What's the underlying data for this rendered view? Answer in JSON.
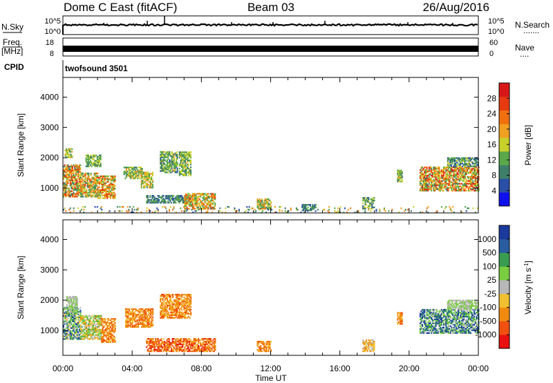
{
  "header": {
    "station": "Dome C East (fitACF)",
    "beam": "Beam 03",
    "date": "26/Aug/2016"
  },
  "left_labels": {
    "nsky": "N.Sky",
    "freq_line1": "Freq.",
    "freq_line2": "[MHz]",
    "cpid": "CPID"
  },
  "right_labels": {
    "nsearch": "N.Search",
    "nsearch_dots": ".......",
    "nave": "Nave",
    "nave_dots": "...."
  },
  "noise_ticks": {
    "left_top": "10^5",
    "left_bottom": "10^0",
    "right_top": "10^5",
    "right_bottom": "10^0"
  },
  "freq_ticks": {
    "left_top": "18",
    "left_bottom": "8",
    "right_top": "60",
    "right_bottom": "0"
  },
  "cpid_text": "twofsound 3501",
  "colors": {
    "power_scale": [
      "#1010ee",
      "#2a4fa8",
      "#3f7f6a",
      "#5aa84a",
      "#c8d02a",
      "#f0a020",
      "#f07010",
      "#e83a10",
      "#d81818"
    ],
    "velocity_scale": [
      "#e81010",
      "#f05010",
      "#f08a10",
      "#f0c030",
      "#b8b8b8",
      "#7acc40",
      "#3a9c50",
      "#2a5ca0",
      "#1a3a9c"
    ]
  },
  "chart_data": [
    {
      "type": "heatmap",
      "name": "power",
      "ylabel": "Slant Range [km]",
      "ylim": [
        180,
        4650
      ],
      "yticks": [
        "1000",
        "2000",
        "3000",
        "4000"
      ],
      "colorbar_label": "Power [dB]",
      "colorbar_ticks": [
        "4",
        "8",
        "12",
        "16",
        "20",
        "24",
        "28"
      ],
      "colorbar_range": [
        0,
        32
      ],
      "patches": [
        {
          "t0": 0.0,
          "t1": 1.0,
          "r0": 700,
          "r1": 1750,
          "v0": 8,
          "v1": 30
        },
        {
          "t0": 0.1,
          "t1": 0.5,
          "r0": 2000,
          "r1": 2300,
          "v0": 10,
          "v1": 20
        },
        {
          "t0": 1.0,
          "t1": 2.0,
          "r0": 700,
          "r1": 1500,
          "v0": 8,
          "v1": 26
        },
        {
          "t0": 2.0,
          "t1": 3.0,
          "r0": 650,
          "r1": 1400,
          "v0": 10,
          "v1": 28
        },
        {
          "t0": 1.3,
          "t1": 2.2,
          "r0": 1700,
          "r1": 2100,
          "v0": 8,
          "v1": 18
        },
        {
          "t0": 3.5,
          "t1": 4.6,
          "r0": 1300,
          "r1": 1700,
          "v0": 8,
          "v1": 20
        },
        {
          "t0": 4.5,
          "t1": 5.2,
          "r0": 1000,
          "r1": 1500,
          "v0": 10,
          "v1": 22
        },
        {
          "t0": 5.6,
          "t1": 6.6,
          "r0": 1500,
          "r1": 2200,
          "v0": 6,
          "v1": 18
        },
        {
          "t0": 6.7,
          "t1": 7.4,
          "r0": 1400,
          "r1": 2200,
          "v0": 8,
          "v1": 18
        },
        {
          "t0": 4.8,
          "t1": 7.4,
          "r0": 500,
          "r1": 750,
          "v0": 4,
          "v1": 14
        },
        {
          "t0": 7.0,
          "t1": 8.8,
          "r0": 300,
          "r1": 800,
          "v0": 10,
          "v1": 26
        },
        {
          "t0": 11.2,
          "t1": 12.0,
          "r0": 300,
          "r1": 650,
          "v0": 10,
          "v1": 22
        },
        {
          "t0": 13.8,
          "t1": 14.6,
          "r0": 250,
          "r1": 450,
          "v0": 6,
          "v1": 12
        },
        {
          "t0": 17.3,
          "t1": 18.0,
          "r0": 300,
          "r1": 700,
          "v0": 6,
          "v1": 16
        },
        {
          "t0": 19.3,
          "t1": 19.6,
          "r0": 1200,
          "r1": 1600,
          "v0": 8,
          "v1": 18
        },
        {
          "t0": 20.6,
          "t1": 24.0,
          "r0": 900,
          "r1": 1700,
          "v0": 8,
          "v1": 30
        },
        {
          "t0": 22.2,
          "t1": 24.0,
          "r0": 1700,
          "r1": 2000,
          "v0": 4,
          "v1": 16
        },
        {
          "t0": 0.0,
          "t1": 24.0,
          "r0": 180,
          "r1": 400,
          "v0": 4,
          "v1": 24
        }
      ]
    },
    {
      "type": "heatmap",
      "name": "velocity",
      "ylabel": "Slant Range [km]",
      "ylim": [
        180,
        4650
      ],
      "yticks": [
        "1000",
        "2000",
        "3000",
        "4000"
      ],
      "xlabel": "Time UT",
      "xticks": [
        "00:00",
        "04:00",
        "08:00",
        "12:00",
        "16:00",
        "20:00",
        "00:00"
      ],
      "colorbar_label": "Velocity [m s^-1]",
      "colorbar_ticks": [
        "-1000",
        "-500",
        "-100",
        "-25",
        "25",
        "100",
        "500",
        "1000"
      ],
      "patches": [
        {
          "t0": 0.0,
          "t1": 1.0,
          "r0": 700,
          "r1": 1750,
          "v0": 3,
          "v1": 8
        },
        {
          "t0": 0.2,
          "t1": 0.8,
          "r0": 1600,
          "r1": 2100,
          "v0": 4,
          "v1": 5
        },
        {
          "t0": 1.0,
          "t1": 2.2,
          "r0": 700,
          "r1": 1500,
          "v0": 2,
          "v1": 6
        },
        {
          "t0": 2.2,
          "t1": 3.0,
          "r0": 600,
          "r1": 1400,
          "v0": 1,
          "v1": 3
        },
        {
          "t0": 3.6,
          "t1": 5.2,
          "r0": 1100,
          "r1": 1700,
          "v0": 1,
          "v1": 3
        },
        {
          "t0": 5.6,
          "t1": 7.4,
          "r0": 1400,
          "r1": 2200,
          "v0": 1,
          "v1": 3
        },
        {
          "t0": 4.8,
          "t1": 8.8,
          "r0": 300,
          "r1": 750,
          "v0": 0,
          "v1": 3
        },
        {
          "t0": 11.2,
          "t1": 12.0,
          "r0": 300,
          "r1": 650,
          "v0": 1,
          "v1": 3
        },
        {
          "t0": 17.3,
          "t1": 18.0,
          "r0": 300,
          "r1": 700,
          "v0": 2,
          "v1": 4
        },
        {
          "t0": 19.3,
          "t1": 19.6,
          "r0": 1200,
          "r1": 1600,
          "v0": 1,
          "v1": 3
        },
        {
          "t0": 20.6,
          "t1": 24.0,
          "r0": 900,
          "r1": 1700,
          "v0": 4,
          "v1": 8
        },
        {
          "t0": 22.2,
          "t1": 24.0,
          "r0": 1700,
          "r1": 2000,
          "v0": 4,
          "v1": 5
        }
      ]
    }
  ]
}
